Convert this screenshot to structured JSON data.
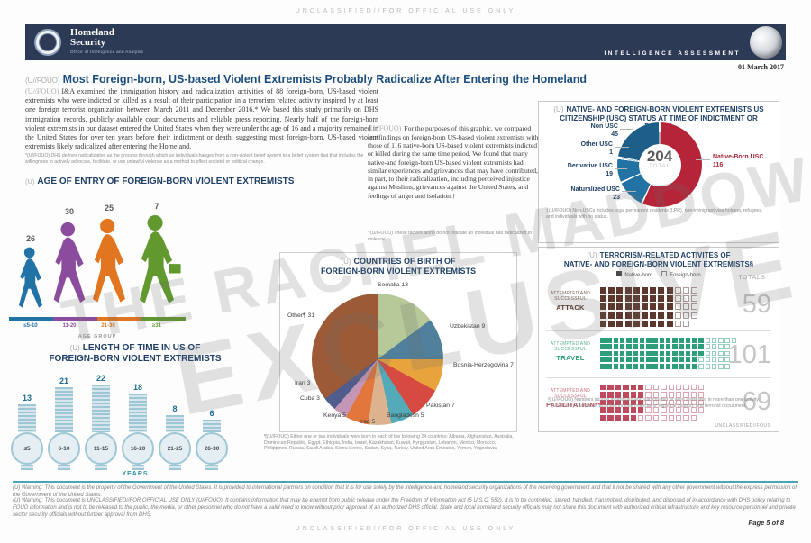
{
  "classification": {
    "top": "UNCLASSIFIED//FOR OFFICIAL USE ONLY",
    "bottom": "UNCLASSIFIED//FOR OFFICIAL USE ONLY",
    "panel": "UNCLASSIFIED//FOUO"
  },
  "header": {
    "agency_line1": "Homeland",
    "agency_line2": "Security",
    "office": "Office of Intelligence and Analysis",
    "banner_label": "INTELLIGENCE ASSESSMENT",
    "date": "01 March 2017"
  },
  "title": {
    "marking": "(U//FOUO)",
    "text": "Most Foreign-born, US-based Violent Extremists Probably Radicalize After Entering the Homeland"
  },
  "intro": {
    "marking": "(U//FOUO)",
    "text": "I&A examined the immigration history and radicalization activities of 88 foreign-born, US-based violent extremists who were indicted or killed as a result of their participation in a terrorism related activity inspired by at least one foreign terrorist organization between March 2011 and December 2016.* We based this study primarily on DHS immigration records, publicly available court documents and reliable press reporting. Nearly half of the foreign-born violent extremists in our dataset entered the United States when they were under the age of 16 and a majority remained in the United States for over ten years before their indictment or death, suggesting most foreign-born, US-based violent extremists likely radicalized after entering the Homeland.",
    "footnote": "*(U//FOUO) DHS defines radicalization as the process through which an individual changes from a non-violent belief system to a belief system that that includes the willingness to actively advocate, facilitate, or use unlawful violence as a method to effect societal or political change."
  },
  "purpose": {
    "marking": "(U//FOUO)",
    "text": "For the purposes of this graphic, we compared our findings on foreign-born US-based violent extremists with those of 116 native-born US-based violent extremists indicted or killed during the same time period. We found that many native-and foreign-born US-based violent extremists had similar experiences and grievances that may have contributed, in part, to their radicalization, including perceived injustice against Muslims, grievances against the United States, and feelings of anger and isolation.†",
    "footnote": "†(U//FOUO) These factors alone do not indicate an individual has radicalized to violence."
  },
  "chart_data": [
    {
      "type": "bar",
      "marking": "(U)",
      "title": "AGE OF ENTRY OF FOREIGN-BORN VIOLENT EXTREMISTS",
      "categories": [
        "≤5-10",
        "11-20",
        "21-30",
        "≥31"
      ],
      "values": [
        26,
        30,
        25,
        7
      ],
      "colors": [
        "#2172a5",
        "#8b4c9d",
        "#e2751f",
        "#61992f"
      ],
      "xlabel": "AGE GROUP"
    },
    {
      "type": "pie",
      "marking": "(U)",
      "title_line1": "COUNTRIES OF BIRTH OF",
      "title_line2": "FOREIGN-BORN VIOLENT EXTREMISTS",
      "slices": [
        {
          "label": "Somalia",
          "value": 13,
          "color": "#b7c998"
        },
        {
          "label": "Uzbekistan",
          "value": 9,
          "color": "#50809b"
        },
        {
          "label": "Bosnia-Herzegovina",
          "value": 7,
          "color": "#e8a33c"
        },
        {
          "label": "Pakistan",
          "value": 7,
          "color": "#d64a41"
        },
        {
          "label": "Bangladesh",
          "value": 5,
          "color": "#53aab8"
        },
        {
          "label": "Iraq",
          "value": 5,
          "color": "#dcb28f"
        },
        {
          "label": "Kenya",
          "value": 5,
          "color": "#e2763b"
        },
        {
          "label": "Cuba",
          "value": 3,
          "color": "#c497b6"
        },
        {
          "label": "Iran",
          "value": 3,
          "color": "#505d8c"
        },
        {
          "label": "Other¶",
          "value": 31,
          "color": "#9c5a36"
        }
      ],
      "footnote": "¶(U//FOUO) Either one or two individuals were born in each of the following 24 countries: Albania, Afghanistan, Australia, Dominican Republic, Egypt, Ethiopia, India, Israel, Kazakhstan, Kuwait, Kyrgyzstan, Lebanon, Mexico, Morocco, Philippines, Russia, Saudi Arabia, Sierra Leone, Sudan, Syria, Turkey, United Arab Emirates, Yemen, Yugoslavia."
    },
    {
      "type": "bar",
      "marking": "(U)",
      "title_line1": "LENGTH OF TIME IN US OF",
      "title_line2": "FOREIGN-BORN VIOLENT EXTREMISTS",
      "categories": [
        "≤5",
        "6-10",
        "11-15",
        "16-20",
        "21-25",
        "26-30"
      ],
      "values": [
        13,
        21,
        22,
        18,
        8,
        6
      ],
      "xlabel": "YEARS"
    },
    {
      "type": "pie",
      "marking": "(U)",
      "title": "NATIVE- AND FOREIGN-BORN VIOLENT EXTREMISTS US CITIZENSHIP (USC) STATUS AT TIME OF INDICTMENT OR DEATH‡",
      "center_value": "204",
      "center_label": "TOTAL",
      "segments": [
        {
          "label": "Native-Born USC",
          "value": 116,
          "color": "#b52438"
        },
        {
          "label": "Naturalized USC",
          "value": 23,
          "color": "#2273a3"
        },
        {
          "label": "Derivative USC",
          "value": 19,
          "color": "#2273a3"
        },
        {
          "label": "Other USC",
          "value": 1,
          "color": "#2273a3"
        },
        {
          "label": "Non USC",
          "value": 45,
          "color": "#1e5f8a"
        }
      ],
      "footnote": "‡(U//FOUO) Non-USCs includes legal permanent residents (LPR), non-immigrant visa holders, refugees, and individuals with no status."
    },
    {
      "type": "heatmap",
      "marking": "(U)",
      "title_line1": "TERRORISM-RELATED ACTIVITES OF",
      "title_line2": "NATIVE- AND FOREIGN-BORN VIOLENT EXTREMISTS§",
      "legend": [
        "Native-born",
        "Foreign-born"
      ],
      "totals_label": "TOTALS",
      "rows": [
        {
          "qualifier": "ATTEMPTED AND SUCCESSFUL",
          "category": "ATTACK",
          "native_born": 45,
          "foreign_born": 14,
          "total": 59,
          "color": "#5b372d"
        },
        {
          "qualifier": "ATTEMPTED AND SUCCESSFUL",
          "category": "TRAVEL",
          "native_born": 78,
          "foreign_born": 23,
          "total": 101,
          "color": "#2e9d7c"
        },
        {
          "qualifier": "ATTEMPTED AND SUCCESSFUL",
          "category": "FACILITATION**",
          "native_born": 29,
          "foreign_born": 40,
          "total": 69,
          "color": "#bf4a5e"
        }
      ],
      "footnote1": "§(U//FOUO) Numbers include individuals who participated or were interested in more than one activity.",
      "footnote2": "**(U//FOUO) Facilitation activities include financial or logistical support, and terrorist recruitment."
    }
  ],
  "footer": {
    "warning1": "(U) Warning: This document is the property of the Government of the United States. It is provided to international partners on condition that it is for use solely by the intelligence and homeland security organizations of the receiving government and that it not be shared with any other government without the express permission of the Government of the United States.",
    "warning2": "(U) Warning: This document is UNCLASSIFIED//FOR OFFICIAL USE ONLY (U//FOUO). It contains information that may be exempt from public release under the Freedom of Information Act (5 U.S.C. 552). It is to be controlled, stored, handled, transmitted, distributed, and disposed of in accordance with DHS policy relating to FOUO information and is not to be released to the public, the media, or other personnel who do not have a valid need to know without prior approval of an authorized DHS official. State and local homeland security officials may not share this document with authorized critical infrastructure and key resource personnel and private sector security officials without further approval from DHS.",
    "page_label": "Page 5 of 8"
  },
  "watermark": {
    "line1": "THE RACHEL MADDOW SHOW",
    "line2": "EXCLUSIVE"
  }
}
